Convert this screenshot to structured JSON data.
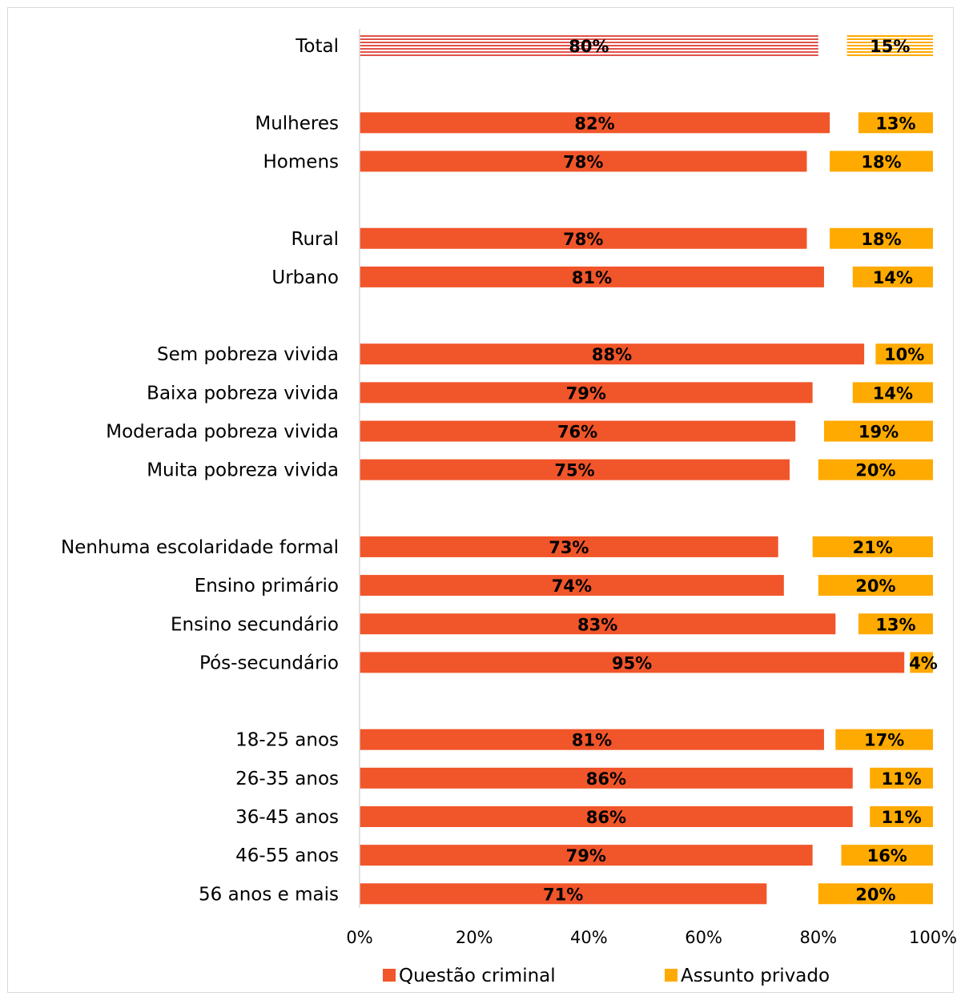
{
  "chart_data": {
    "type": "bar",
    "orientation": "horizontal",
    "stacked": true,
    "categories": [
      "Total",
      "Mulheres",
      "Homens",
      "Rural",
      "Urbano",
      "Sem pobreza vivida",
      "Baixa pobreza vivida",
      "Moderada pobreza vivida",
      "Muita pobreza vivida",
      "Nenhuma escolaridade formal",
      "Ensino primário",
      "Ensino secundário",
      "Pós-secundário",
      "18-25 anos",
      "26-35 anos",
      "36-45 anos",
      "46-55 anos",
      "56 anos e mais"
    ],
    "groups": [
      [
        0
      ],
      [
        1,
        2
      ],
      [
        3,
        4
      ],
      [
        5,
        6,
        7,
        8
      ],
      [
        9,
        10,
        11,
        12
      ],
      [
        13,
        14,
        15,
        16,
        17
      ]
    ],
    "series": [
      {
        "name": "Questão criminal",
        "color": "#f1552a",
        "values": [
          80,
          82,
          78,
          78,
          81,
          88,
          79,
          76,
          75,
          73,
          74,
          83,
          95,
          81,
          86,
          86,
          79,
          71
        ],
        "labels": [
          "80%",
          "82%",
          "78%",
          "78%",
          "81%",
          "88%",
          "79%",
          "76%",
          "75%",
          "73%",
          "74%",
          "83%",
          "95%",
          "81%",
          "86%",
          "86%",
          "79%",
          "71%"
        ]
      },
      {
        "name": "Assunto privado",
        "color": "#ffaa00",
        "values": [
          15,
          13,
          18,
          18,
          14,
          10,
          14,
          19,
          20,
          21,
          20,
          13,
          4,
          17,
          11,
          11,
          16,
          20
        ],
        "labels": [
          "15%",
          "13%",
          "18%",
          "18%",
          "14%",
          "10%",
          "14%",
          "19%",
          "20%",
          "21%",
          "20%",
          "13%",
          "4%",
          "17%",
          "11%",
          "11%",
          "16%",
          "20%"
        ]
      }
    ],
    "highlighted_category": "Total",
    "highlight_pattern": "horizontal-stripes",
    "xlim": [
      0,
      100
    ],
    "xticks": [
      "0%",
      "20%",
      "40%",
      "60%",
      "80%",
      "100%"
    ],
    "grid": false,
    "legend": {
      "position": "bottom"
    }
  }
}
